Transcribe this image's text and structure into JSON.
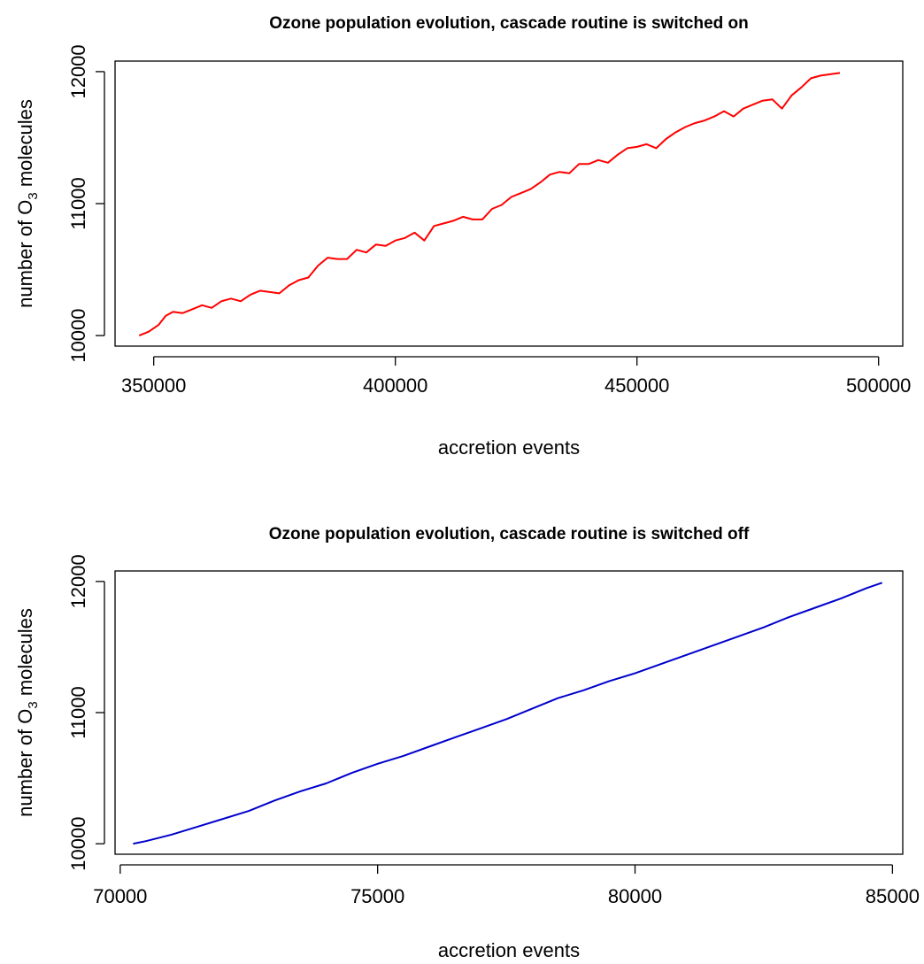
{
  "chart_data": [
    {
      "type": "line",
      "title": "Ozone population evolution, cascade routine is switched on",
      "xlabel": "accretion events",
      "ylabel_prefix": "number of  O",
      "ylabel_sub": "3",
      "ylabel_suffix": "  molecules",
      "xlim": [
        342000,
        505000
      ],
      "ylim": [
        9920,
        12080
      ],
      "xticks": [
        350000,
        400000,
        450000,
        500000
      ],
      "yticks": [
        10000,
        11000,
        12000
      ],
      "color": "#ff0000",
      "series": [
        {
          "x": [
            347000,
            349000,
            351000,
            352500,
            354000,
            356000,
            358000,
            360000,
            362000,
            364000,
            366000,
            368000,
            370000,
            372000,
            374000,
            376000,
            378000,
            380000,
            382000,
            384000,
            386000,
            388000,
            390000,
            392000,
            394000,
            396000,
            398000,
            400000,
            402000,
            404000,
            406000,
            408000,
            410000,
            412000,
            414000,
            416000,
            418000,
            420000,
            422000,
            424000,
            426000,
            428000,
            430000,
            432000,
            434000,
            436000,
            438000,
            440000,
            442000,
            444000,
            446000,
            448000,
            450000,
            452000,
            454000,
            456000,
            458000,
            460000,
            462000,
            464000,
            466000,
            468000,
            470000,
            472000,
            474000,
            476000,
            478000,
            480000,
            482000,
            484000,
            486000,
            488000,
            490000,
            492000
          ],
          "y": [
            10000,
            10030,
            10080,
            10150,
            10180,
            10170,
            10200,
            10230,
            10210,
            10260,
            10280,
            10260,
            10310,
            10340,
            10330,
            10320,
            10380,
            10420,
            10440,
            10530,
            10590,
            10580,
            10580,
            10650,
            10630,
            10690,
            10680,
            10720,
            10740,
            10780,
            10720,
            10830,
            10850,
            10870,
            10900,
            10880,
            10880,
            10960,
            10990,
            11050,
            11080,
            11110,
            11160,
            11220,
            11240,
            11230,
            11300,
            11300,
            11330,
            11310,
            11370,
            11420,
            11430,
            11450,
            11420,
            11490,
            11540,
            11580,
            11610,
            11630,
            11660,
            11700,
            11660,
            11720,
            11750,
            11780,
            11790,
            11720,
            11820,
            11880,
            11950,
            11970,
            11980,
            11990
          ]
        }
      ]
    },
    {
      "type": "line",
      "title": "Ozone population evolution, cascade routine is switched off",
      "xlabel": "accretion events",
      "ylabel_prefix": "number of  O",
      "ylabel_sub": "3",
      "ylabel_suffix": "  molecules",
      "xlim": [
        69900,
        85200
      ],
      "ylim": [
        9920,
        12080
      ],
      "xticks": [
        70000,
        75000,
        80000,
        85000
      ],
      "yticks": [
        10000,
        11000,
        12000
      ],
      "color": "#0000cd",
      "series": [
        {
          "x": [
            70250,
            70500,
            71000,
            71500,
            72000,
            72500,
            73000,
            73500,
            74000,
            74500,
            75000,
            75500,
            76000,
            76500,
            77000,
            77500,
            78000,
            78500,
            79000,
            79500,
            80000,
            80500,
            81000,
            81500,
            82000,
            82500,
            83000,
            83500,
            84000,
            84500,
            84800
          ],
          "y": [
            10000,
            10020,
            10070,
            10130,
            10190,
            10250,
            10330,
            10400,
            10460,
            10540,
            10610,
            10670,
            10740,
            10810,
            10880,
            10950,
            11030,
            11110,
            11170,
            11240,
            11300,
            11370,
            11440,
            11510,
            11580,
            11650,
            11730,
            11800,
            11870,
            11950,
            11990
          ]
        }
      ]
    }
  ]
}
